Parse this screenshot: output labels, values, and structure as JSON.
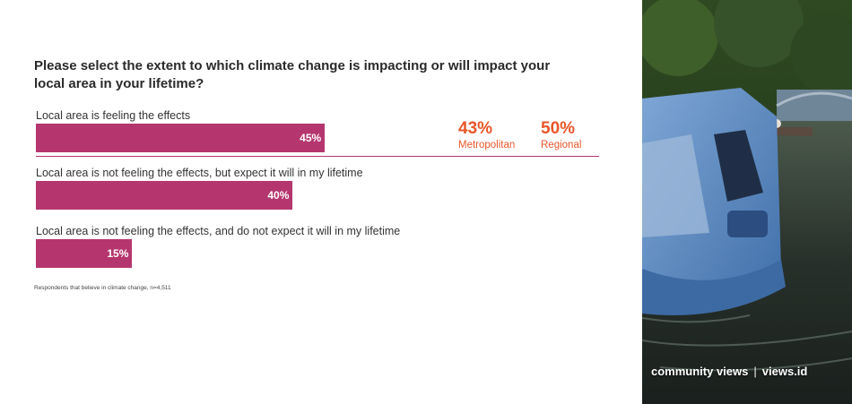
{
  "chart_data": {
    "type": "bar",
    "orientation": "horizontal",
    "title": "Please select the extent to which climate change is impacting or will impact your local area in your lifetime?",
    "categories": [
      "Local area is feeling the effects",
      "Local area is not feeling the effects, but expect it will in my lifetime",
      "Local area is not feeling the effects, and do not expect it will in my lifetime"
    ],
    "values": [
      45,
      40,
      15
    ],
    "value_labels": [
      "45%",
      "40%",
      "15%"
    ],
    "xlim": [
      0,
      100
    ],
    "bar_color": "#b5366f",
    "annotations": [
      {
        "value": "43%",
        "label": "Metropolitan"
      },
      {
        "value": "50%",
        "label": "Regional"
      }
    ],
    "footnote": "Respondents that believe in climate change, n=4,511"
  },
  "colors": {
    "accent": "#e8562a",
    "bar": "#b5366f"
  },
  "photo": {
    "icon": "flooded-car-photo"
  },
  "brand": {
    "left": "community views",
    "separator": "|",
    "right": "views.id"
  }
}
